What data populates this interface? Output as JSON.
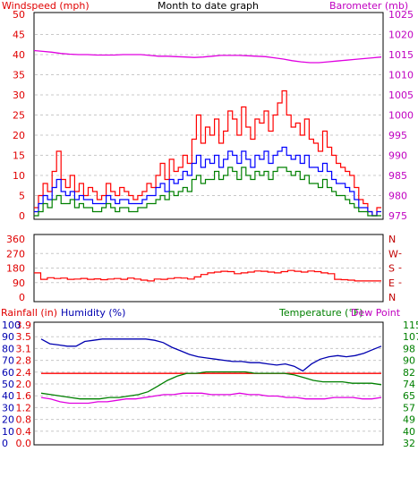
{
  "chart_data": [
    {
      "type": "line",
      "title": "Month to date graph",
      "y_title": "Windspeed (mph)",
      "y2_title": "Barometer (mb)",
      "ylim": [
        0,
        50
      ],
      "y_ticks": [
        "0",
        "5",
        "10",
        "15",
        "20",
        "25",
        "30",
        "35",
        "40",
        "45",
        "50"
      ],
      "y2lim": [
        975,
        1025
      ],
      "y2_ticks": [
        "975",
        "980",
        "985",
        "990",
        "995",
        "1000",
        "1005",
        "1010",
        "1015",
        "1020",
        "1025"
      ],
      "grid": true,
      "colors": {
        "gust": "#ff0000",
        "avg": "#0000ff",
        "min": "#008000",
        "baro": "#e000e0"
      },
      "series": [
        {
          "key": "gust",
          "values": [
            2,
            5,
            8,
            6,
            11,
            16,
            9,
            7,
            10,
            6,
            8,
            5,
            7,
            6,
            4,
            5,
            8,
            6,
            5,
            7,
            6,
            5,
            4,
            5,
            6,
            8,
            7,
            10,
            13,
            9,
            14,
            11,
            12,
            15,
            13,
            19,
            25,
            18,
            22,
            20,
            24,
            18,
            21,
            26,
            24,
            20,
            27,
            22,
            19,
            24,
            23,
            26,
            21,
            25,
            28,
            31,
            25,
            22,
            23,
            20,
            24,
            19,
            18,
            16,
            21,
            17,
            15,
            13,
            12,
            11,
            10,
            7,
            4,
            3,
            1,
            0,
            2
          ]
        },
        {
          "key": "avg",
          "values": [
            1,
            3,
            5,
            4,
            7,
            9,
            6,
            5,
            6,
            4,
            5,
            4,
            4,
            3,
            3,
            3,
            5,
            4,
            3,
            4,
            4,
            3,
            3,
            3,
            4,
            5,
            5,
            7,
            8,
            6,
            9,
            8,
            9,
            11,
            10,
            13,
            15,
            12,
            14,
            13,
            15,
            12,
            14,
            16,
            15,
            13,
            16,
            14,
            12,
            15,
            14,
            16,
            13,
            15,
            16,
            17,
            15,
            14,
            15,
            13,
            15,
            12,
            12,
            11,
            13,
            11,
            9,
            8,
            8,
            7,
            6,
            4,
            2,
            2,
            1,
            0,
            1
          ]
        },
        {
          "key": "min",
          "values": [
            0,
            1,
            3,
            2,
            4,
            5,
            3,
            3,
            4,
            2,
            3,
            2,
            2,
            1,
            1,
            2,
            3,
            2,
            1,
            2,
            2,
            1,
            1,
            2,
            2,
            3,
            3,
            4,
            5,
            4,
            6,
            5,
            6,
            7,
            6,
            9,
            10,
            8,
            9,
            9,
            11,
            9,
            10,
            12,
            11,
            9,
            12,
            10,
            9,
            11,
            10,
            11,
            9,
            11,
            12,
            12,
            11,
            10,
            11,
            9,
            10,
            8,
            8,
            7,
            9,
            7,
            6,
            5,
            5,
            4,
            3,
            2,
            1,
            1,
            0,
            0,
            0
          ]
        },
        {
          "key": "baro",
          "axis": 2,
          "values": [
            1016,
            1015.8,
            1015.6,
            1015.3,
            1015.1,
            1015,
            1015,
            1014.9,
            1014.9,
            1014.9,
            1015,
            1015,
            1015,
            1014.8,
            1014.6,
            1014.6,
            1014.5,
            1014.4,
            1014.3,
            1014.4,
            1014.6,
            1014.8,
            1014.8,
            1014.8,
            1014.7,
            1014.6,
            1014.5,
            1014.2,
            1013.9,
            1013.5,
            1013.2,
            1013,
            1013,
            1013.2,
            1013.4,
            1013.6,
            1013.8,
            1014.0,
            1014.2,
            1014.4
          ]
        }
      ]
    },
    {
      "type": "line",
      "ylim": [
        0,
        360
      ],
      "y_ticks": [
        "0",
        "90",
        "180",
        "270",
        "360"
      ],
      "y2_ticks": [
        "N",
        "E",
        "S",
        "W",
        "N"
      ],
      "grid": true,
      "colors": {
        "dir": "#ff0000",
        "n": "#c00000"
      },
      "series": [
        {
          "key": "dir",
          "values": [
            150,
            110,
            120,
            115,
            118,
            110,
            112,
            116,
            110,
            113,
            108,
            112,
            115,
            110,
            118,
            112,
            105,
            100,
            112,
            110,
            115,
            120,
            118,
            112,
            125,
            140,
            150,
            155,
            160,
            158,
            145,
            150,
            155,
            162,
            160,
            155,
            150,
            158,
            165,
            160,
            155,
            162,
            158,
            150,
            145,
            110,
            108,
            105,
            100,
            100,
            100,
            100
          ]
        }
      ]
    },
    {
      "type": "line",
      "rain_title": "Rainfall (in)",
      "humidity_title": "Humidity (%)",
      "temp_title": "Temperature (°F)",
      "dew_title": "Dew Point",
      "rain_ticks": [
        "0.0",
        "0.4",
        "0.8",
        "1.2",
        "1.6",
        "2.0",
        "2.4",
        "2.8",
        "3.1",
        "3.5",
        "3.9"
      ],
      "humidity_ticks": [
        "0",
        "10",
        "20",
        "30",
        "40",
        "50",
        "60",
        "70",
        "80",
        "90",
        "100"
      ],
      "temp_ticks": [
        "32",
        "40",
        "49",
        "57",
        "65",
        "74",
        "82",
        "90",
        "98",
        "107",
        "115"
      ],
      "grid": true,
      "colors": {
        "rain": "#ff0000",
        "humidity": "#0000b0",
        "temp": "#008000",
        "dew": "#e000e0"
      },
      "series": [
        {
          "key": "rain",
          "values": [
            2.3,
            2.3,
            2.3,
            2.3,
            2.3,
            2.3,
            2.3,
            2.3,
            2.3,
            2.3,
            2.3,
            2.3
          ]
        },
        {
          "key": "humidity",
          "values": [
            88,
            84,
            83,
            82,
            82,
            86,
            87,
            88,
            88,
            88,
            88,
            88,
            88,
            87,
            85,
            81,
            78,
            75,
            73,
            72,
            71,
            70,
            69,
            69,
            68,
            68,
            67,
            66,
            67,
            65,
            61,
            67,
            71,
            73,
            74,
            73,
            74,
            76,
            79,
            82
          ]
        },
        {
          "key": "temp",
          "values": [
            67,
            66,
            65,
            64,
            63,
            63,
            63,
            64,
            64,
            65,
            66,
            68,
            72,
            76,
            79,
            81,
            81,
            82,
            82,
            82,
            82,
            82,
            81,
            81,
            81,
            81,
            80,
            78,
            76,
            75,
            75,
            75,
            74,
            74,
            74,
            73
          ]
        },
        {
          "key": "dew",
          "values": [
            64,
            63,
            61,
            60,
            60,
            60,
            61,
            61,
            62,
            63,
            63,
            64,
            65,
            66,
            66,
            67,
            67,
            67,
            66,
            66,
            66,
            67,
            66,
            66,
            65,
            65,
            64,
            64,
            63,
            63,
            63,
            64,
            64,
            64,
            63,
            63,
            64
          ]
        }
      ]
    }
  ]
}
